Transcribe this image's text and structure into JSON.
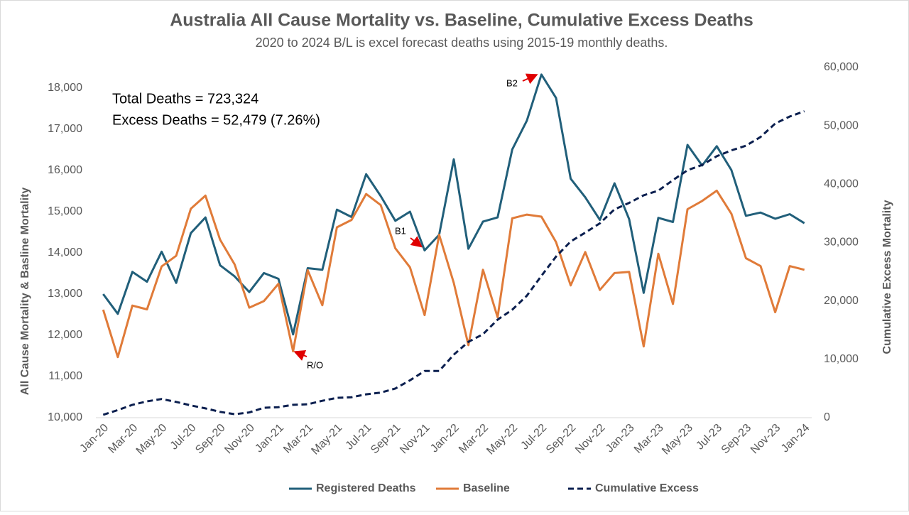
{
  "chart_data": {
    "type": "line",
    "title": "Australia All Cause Mortality vs. Baseline, Cumulative Excess Deaths",
    "subtitle": "2020 to 2024 B/L is excel forecast deaths using 2015-19 monthly deaths.",
    "ylabel": "All Cause Mortality & Basline Mortality",
    "y2label": "Cumulative Excess Mortality",
    "categories": [
      "Jan-20",
      null,
      "Mar-20",
      null,
      "May-20",
      null,
      "Jul-20",
      null,
      "Sep-20",
      null,
      "Nov-20",
      null,
      "Jan-21",
      null,
      "Mar-21",
      null,
      "May-21",
      null,
      "Jul-21",
      null,
      "Sep-21",
      null,
      "Nov-21",
      null,
      "Jan-22",
      null,
      "Mar-22",
      null,
      "May-22",
      null,
      "Jul-22",
      null,
      "Sep-22",
      null,
      "Nov-22",
      null,
      "Jan-23",
      null,
      "Mar-23",
      null,
      "May-23",
      null,
      "Jul-23",
      null,
      "Sep-23",
      null,
      "Nov-23",
      null,
      "Jan-24"
    ],
    "series": [
      {
        "name": "Registered Deaths",
        "color": "#215f7a",
        "dash": false,
        "axis": "y",
        "values": [
          13000,
          12520,
          13540,
          13300,
          14030,
          13270,
          14480,
          14860,
          13700,
          13430,
          13050,
          13510,
          13370,
          12020,
          13630,
          13590,
          15050,
          14870,
          15910,
          15380,
          14780,
          15000,
          14060,
          14440,
          16270,
          14100,
          14760,
          14860,
          16510,
          17210,
          18330,
          17760,
          15800,
          15350,
          14800,
          15690,
          14820,
          13030,
          14850,
          14750,
          16620,
          16120,
          16590,
          16010,
          14900,
          14980,
          14830,
          14940,
          14720
        ]
      },
      {
        "name": "Baseline",
        "color": "#e07b39",
        "dash": false,
        "axis": "y",
        "values": [
          12620,
          11470,
          12720,
          12630,
          13670,
          13930,
          15070,
          15390,
          14320,
          13720,
          12670,
          12830,
          13250,
          11610,
          13580,
          12730,
          14620,
          14800,
          15430,
          15160,
          14110,
          13650,
          12490,
          14440,
          13270,
          11760,
          13590,
          12440,
          14840,
          14930,
          14880,
          14260,
          13210,
          14020,
          13100,
          13510,
          13540,
          11730,
          13980,
          12760,
          15060,
          15260,
          15510,
          14950,
          13870,
          13680,
          12560,
          13680,
          13590
        ]
      },
      {
        "name": "Cumulative Excess",
        "color": "#0b1f4f",
        "dash": true,
        "axis": "y2",
        "values": [
          500,
          1300,
          2200,
          2800,
          3200,
          2700,
          2100,
          1600,
          1000,
          600,
          900,
          1700,
          1800,
          2200,
          2300,
          2900,
          3400,
          3500,
          4000,
          4300,
          5000,
          6400,
          8000,
          8000,
          10800,
          13000,
          14300,
          16800,
          18500,
          20900,
          24300,
          27600,
          30200,
          31700,
          33300,
          35700,
          36800,
          38100,
          38900,
          40700,
          42400,
          43300,
          44800,
          45800,
          46600,
          48100,
          50400,
          51600,
          52500
        ]
      }
    ],
    "ylim": [
      10000,
      18000
    ],
    "yticks": [
      {
        "value": 10000,
        "label": "10,000"
      },
      {
        "value": 11000,
        "label": "11,000"
      },
      {
        "value": 12000,
        "label": "12,000"
      },
      {
        "value": 13000,
        "label": "13,000"
      },
      {
        "value": 14000,
        "label": "14,000"
      },
      {
        "value": 15000,
        "label": "15,000"
      },
      {
        "value": 16000,
        "label": "16,000"
      },
      {
        "value": 17000,
        "label": "17,000"
      },
      {
        "value": 18000,
        "label": "18,000"
      }
    ],
    "y2lim": [
      0,
      60000
    ],
    "y2ticks": [
      0,
      {
        "value": 10000,
        "label": "10,000"
      },
      {
        "value": 20000,
        "label": "20,000"
      },
      {
        "value": 30000,
        "label": "30,000"
      },
      {
        "value": 40000,
        "label": "40,000"
      },
      {
        "value": 50000,
        "label": "50,000"
      },
      {
        "value": 60000,
        "label": "60,000"
      }
    ],
    "grid": false,
    "legend": "bottom",
    "annotations": [
      "Total Deaths = 723,324",
      "Excess Deaths = 52,479 (7.26%)",
      "B2",
      "B1",
      "R/O"
    ]
  }
}
